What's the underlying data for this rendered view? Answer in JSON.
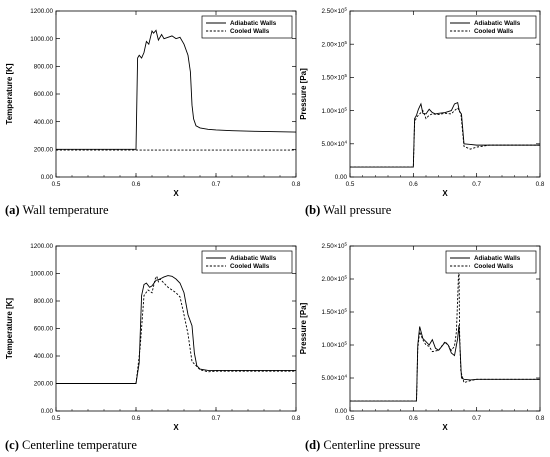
{
  "chart_data": [
    {
      "id": "a",
      "type": "line",
      "caption_letter": "(a)",
      "caption_text": "Wall temperature",
      "xlabel": "X",
      "ylabel": "Temperature [K]",
      "xlim": [
        0.5,
        0.8
      ],
      "ylim": [
        0,
        1200
      ],
      "xticks": [
        "0.5",
        "0.6",
        "0.7",
        "0.8"
      ],
      "yticks": [
        "0.00",
        "200.00",
        "400.00",
        "600.00",
        "800.00",
        "1000.00",
        "1200.00"
      ],
      "legend": "top-right",
      "grid": false,
      "series": [
        {
          "name": "Adiabatic Walls",
          "style": "solid",
          "x": [
            0.5,
            0.6,
            0.602,
            0.604,
            0.607,
            0.61,
            0.613,
            0.616,
            0.62,
            0.622,
            0.625,
            0.628,
            0.632,
            0.635,
            0.64,
            0.645,
            0.65,
            0.655,
            0.66,
            0.665,
            0.668,
            0.67,
            0.672,
            0.675,
            0.68,
            0.69,
            0.7,
            0.72,
            0.75,
            0.8
          ],
          "y": [
            200,
            200,
            860,
            880,
            860,
            900,
            980,
            960,
            1055,
            1040,
            1060,
            990,
            1030,
            1000,
            1010,
            1020,
            1000,
            1010,
            960,
            880,
            760,
            520,
            420,
            370,
            355,
            345,
            340,
            335,
            330,
            325
          ]
        },
        {
          "name": "Cooled Walls",
          "style": "dashed",
          "x": [
            0.5,
            0.8
          ],
          "y": [
            195,
            195
          ]
        }
      ]
    },
    {
      "id": "b",
      "type": "line",
      "caption_letter": "(b)",
      "caption_text": "Wall pressure",
      "xlabel": "X",
      "ylabel": "Pressure [Pa]",
      "xlim": [
        0.5,
        0.8
      ],
      "ylim": [
        0,
        250000
      ],
      "xticks": [
        "0.5",
        "0.6",
        "0.7",
        "0.8"
      ],
      "yticks": [
        {
          "mant": "0.00",
          "exp": ""
        },
        {
          "mant": "5.00×10",
          "exp": "4"
        },
        {
          "mant": "1.00×10",
          "exp": "5"
        },
        {
          "mant": "1.50×10",
          "exp": "5"
        },
        {
          "mant": "2.00×10",
          "exp": "5"
        },
        {
          "mant": "2.50×10",
          "exp": "5"
        }
      ],
      "legend": "top-right",
      "grid": false,
      "series": [
        {
          "name": "Adiabatic Walls",
          "style": "solid",
          "x": [
            0.5,
            0.6,
            0.602,
            0.605,
            0.608,
            0.612,
            0.615,
            0.62,
            0.625,
            0.63,
            0.635,
            0.64,
            0.65,
            0.66,
            0.665,
            0.67,
            0.673,
            0.676,
            0.68,
            0.69,
            0.7,
            0.8
          ],
          "y": [
            15000,
            15000,
            88000,
            93000,
            102000,
            110000,
            96000,
            95000,
            102000,
            97000,
            95000,
            96000,
            97000,
            100000,
            110000,
            112000,
            98000,
            95000,
            50000,
            49000,
            48000,
            48000
          ]
        },
        {
          "name": "Cooled Walls",
          "style": "dashed",
          "x": [
            0.5,
            0.6,
            0.602,
            0.605,
            0.61,
            0.615,
            0.62,
            0.625,
            0.63,
            0.64,
            0.65,
            0.66,
            0.665,
            0.67,
            0.675,
            0.68,
            0.69,
            0.7,
            0.72,
            0.8
          ],
          "y": [
            15000,
            15000,
            82000,
            90000,
            95000,
            100000,
            88000,
            93000,
            95000,
            94000,
            96000,
            95000,
            100000,
            104000,
            96000,
            46000,
            42000,
            45000,
            48000,
            48000
          ]
        }
      ]
    },
    {
      "id": "c",
      "type": "line",
      "caption_letter": "(c)",
      "caption_text": "Centerline temperature",
      "xlabel": "X",
      "ylabel": "Temperature [K]",
      "xlim": [
        0.5,
        0.8
      ],
      "ylim": [
        0,
        1200
      ],
      "xticks": [
        "0.5",
        "0.6",
        "0.7",
        "0.8"
      ],
      "yticks": [
        "0.00",
        "200.00",
        "400.00",
        "600.00",
        "800.00",
        "1000.00",
        "1200.00"
      ],
      "legend": "top-right",
      "grid": false,
      "series": [
        {
          "name": "Adiabatic Walls",
          "style": "solid",
          "x": [
            0.5,
            0.6,
            0.604,
            0.607,
            0.61,
            0.613,
            0.617,
            0.62,
            0.625,
            0.63,
            0.635,
            0.64,
            0.645,
            0.65,
            0.655,
            0.66,
            0.665,
            0.67,
            0.673,
            0.676,
            0.68,
            0.69,
            0.7,
            0.75,
            0.8
          ],
          "y": [
            200,
            200,
            350,
            840,
            920,
            930,
            900,
            910,
            950,
            960,
            975,
            985,
            980,
            960,
            930,
            860,
            700,
            620,
            420,
            330,
            305,
            295,
            295,
            295,
            295
          ]
        },
        {
          "name": "Cooled Walls",
          "style": "dashed",
          "x": [
            0.5,
            0.6,
            0.605,
            0.61,
            0.615,
            0.62,
            0.624,
            0.626,
            0.628,
            0.63,
            0.635,
            0.64,
            0.645,
            0.65,
            0.655,
            0.66,
            0.665,
            0.67,
            0.68,
            0.69,
            0.7,
            0.75,
            0.8
          ],
          "y": [
            200,
            200,
            450,
            840,
            880,
            860,
            960,
            980,
            940,
            960,
            930,
            900,
            880,
            860,
            830,
            700,
            560,
            360,
            300,
            285,
            290,
            290,
            290
          ]
        }
      ]
    },
    {
      "id": "d",
      "type": "line",
      "caption_letter": "(d)",
      "caption_text": "Centerline pressure",
      "xlabel": "X",
      "ylabel": "Pressure [Pa]",
      "xlim": [
        0.5,
        0.8
      ],
      "ylim": [
        0,
        250000
      ],
      "xticks": [
        "0.5",
        "0.6",
        "0.7",
        "0.8"
      ],
      "yticks": [
        {
          "mant": "0.00",
          "exp": ""
        },
        {
          "mant": "5.00×10",
          "exp": "4"
        },
        {
          "mant": "1.00×10",
          "exp": "5"
        },
        {
          "mant": "1.50×10",
          "exp": "5"
        },
        {
          "mant": "2.00×10",
          "exp": "5"
        },
        {
          "mant": "2.50×10",
          "exp": "5"
        }
      ],
      "legend": "top-right",
      "grid": false,
      "series": [
        {
          "name": "Adiabatic Walls",
          "style": "solid",
          "x": [
            0.5,
            0.605,
            0.607,
            0.61,
            0.615,
            0.62,
            0.625,
            0.63,
            0.635,
            0.64,
            0.645,
            0.65,
            0.655,
            0.66,
            0.665,
            0.67,
            0.672,
            0.674,
            0.676,
            0.68,
            0.69,
            0.7,
            0.8
          ],
          "y": [
            15000,
            15000,
            100000,
            128000,
            110000,
            105000,
            100000,
            108000,
            95000,
            92000,
            98000,
            104000,
            100000,
            88000,
            84000,
            110000,
            130000,
            90000,
            50000,
            48000,
            47000,
            48000,
            48000
          ]
        },
        {
          "name": "Cooled Walls",
          "style": "dashed",
          "x": [
            0.5,
            0.605,
            0.607,
            0.61,
            0.615,
            0.62,
            0.625,
            0.63,
            0.64,
            0.65,
            0.655,
            0.66,
            0.665,
            0.668,
            0.67,
            0.672,
            0.673,
            0.675,
            0.68,
            0.69,
            0.7,
            0.8
          ],
          "y": [
            15000,
            15000,
            95000,
            120000,
            108000,
            100000,
            98000,
            90000,
            92000,
            105000,
            100000,
            92000,
            98000,
            120000,
            170000,
            228000,
            120000,
            60000,
            43000,
            46000,
            48000,
            48000
          ]
        }
      ]
    }
  ]
}
